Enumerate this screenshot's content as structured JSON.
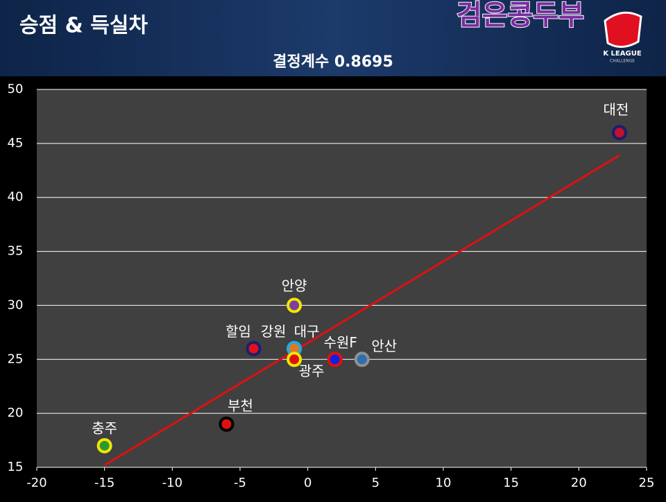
{
  "header": {
    "title": "승점 & 득실차",
    "brand": "검은콩두부",
    "logo_line1": "K LEAGUE",
    "logo_line2": "CHALLENGE"
  },
  "chart_data": {
    "type": "scatter",
    "subtitle": "결정계수 0.8695",
    "points": [
      {
        "label": "대전",
        "x": 23,
        "y": 46,
        "fill": "#c0122c",
        "stroke": "#1a1f6e"
      },
      {
        "label": "안양",
        "x": -1,
        "y": 30,
        "fill": "#7b3fa0",
        "stroke": "#f2e600"
      },
      {
        "label": "할임",
        "x": -4,
        "y": 26,
        "fill": "#e0101c",
        "stroke": "#1a1f6e"
      },
      {
        "label": "강원",
        "x": -1,
        "y": 26,
        "fill": "#e07a20",
        "stroke": "#29a8e0"
      },
      {
        "label": "대구",
        "x": -1,
        "y": 26,
        "fill": "#e07a20",
        "stroke": "#29a8e0"
      },
      {
        "label": "광주",
        "x": -1,
        "y": 25,
        "fill": "#e01010",
        "stroke": "#f2e600"
      },
      {
        "label": "수원F",
        "x": 2,
        "y": 25,
        "fill": "#1020e0",
        "stroke": "#e01010"
      },
      {
        "label": "안산",
        "x": 4,
        "y": 25,
        "fill": "#2a70b0",
        "stroke": "#909090"
      },
      {
        "label": "부천",
        "x": -6,
        "y": 19,
        "fill": "#e01010",
        "stroke": "#000000"
      },
      {
        "label": "충주",
        "x": -15,
        "y": 17,
        "fill": "#2a9a30",
        "stroke": "#f2e600"
      }
    ],
    "trendline": {
      "x": [
        -15,
        23
      ],
      "y": [
        15.2,
        43.9
      ],
      "color": "#e01010"
    },
    "xlim": [
      -20,
      25
    ],
    "xticks": [
      -20,
      -15,
      -10,
      -5,
      0,
      5,
      10,
      15,
      20,
      25
    ],
    "ylim": [
      15,
      50
    ],
    "yticks": [
      15,
      20,
      25,
      30,
      35,
      40,
      45,
      50
    ],
    "grid": true
  }
}
